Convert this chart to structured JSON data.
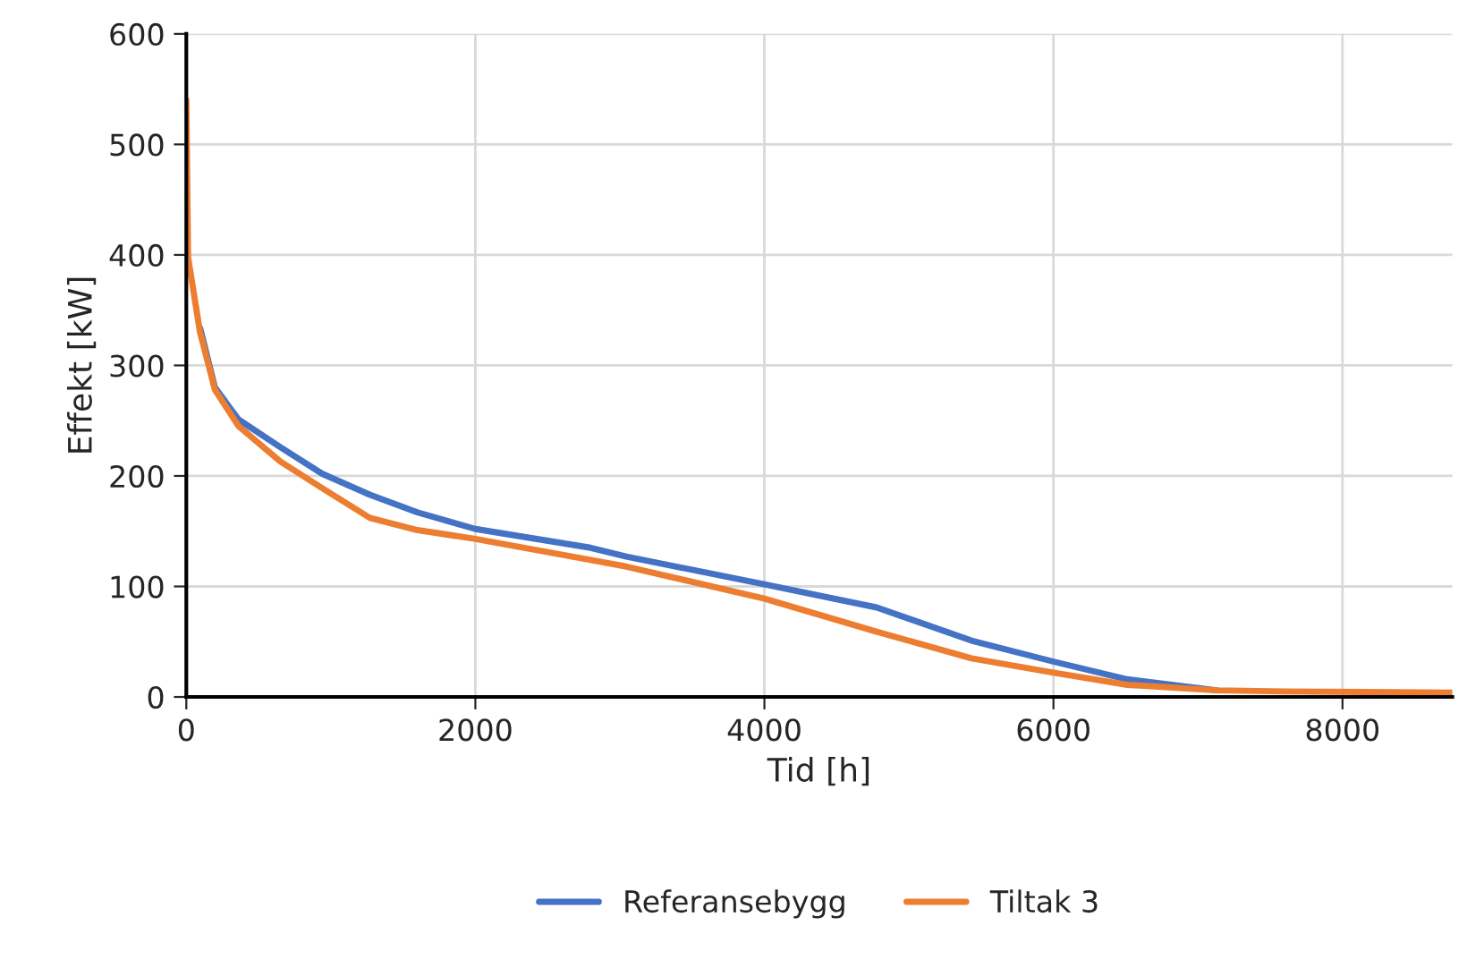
{
  "chart_data": {
    "type": "line",
    "xlabel": "Tid [h]",
    "ylabel": "Effekt [kW]",
    "xlim": [
      0,
      8760
    ],
    "xticks": [
      0,
      2000,
      4000,
      6000,
      8000
    ],
    "ylim": [
      0,
      600
    ],
    "yticks": [
      0,
      100,
      200,
      300,
      400,
      500,
      600
    ],
    "grid": true,
    "legend": "bottom",
    "marker": "none",
    "line_style": "solid",
    "x": [
      0,
      12,
      95,
      198,
      362,
      651,
      940,
      1270,
      1600,
      2000,
      2797,
      3045,
      4000,
      4777,
      5433,
      6000,
      6510,
      7129,
      7600,
      8760
    ],
    "series": [
      {
        "name": "Referansebygg",
        "color": "#4472c4",
        "values": [
          null,
          null,
          334,
          280,
          251,
          226,
          202,
          183,
          167,
          152,
          135,
          127,
          102,
          81,
          51,
          32,
          16,
          6,
          null,
          null
        ]
      },
      {
        "name": "Tiltak 3",
        "color": "#ed7d31",
        "values": [
          540,
          398,
          330,
          278,
          245,
          213,
          189,
          162,
          151,
          143,
          124,
          118,
          89,
          59,
          35,
          22,
          11,
          6,
          5,
          4
        ]
      }
    ]
  }
}
